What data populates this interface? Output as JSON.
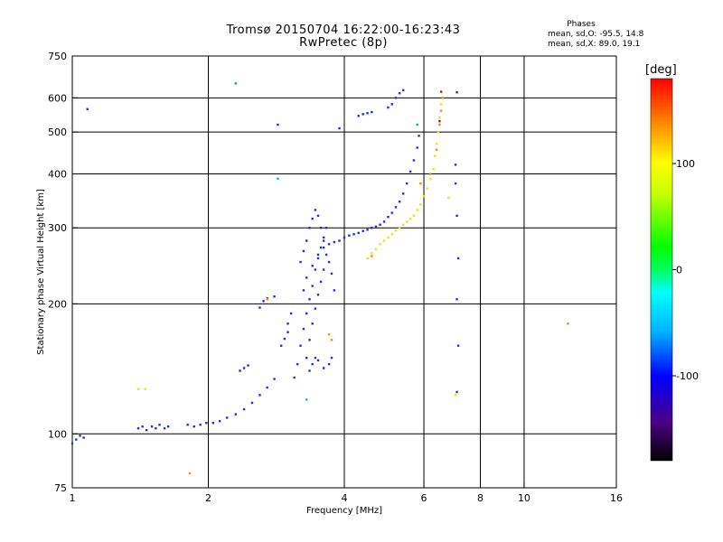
{
  "title_line1": "Tromsø 20150704 16:22:00-16:23:43",
  "title_line2": "RwPretec (8p)",
  "phases": {
    "title": "Phases",
    "o_line": "mean, sd,O: -95.5, 14.8",
    "x_line": "mean, sd,X: 89.0, 19.1"
  },
  "colorbar": {
    "unit": "[deg]",
    "ticks": [
      {
        "value": 100,
        "label": "100"
      },
      {
        "value": 0,
        "label": "0"
      },
      {
        "value": -100,
        "label": "-100"
      }
    ],
    "range": [
      -180,
      180
    ]
  },
  "chart_data": {
    "type": "scatter",
    "xlabel": "Frequency [MHz]",
    "ylabel": "Stationary phase Virtual Height [km]",
    "xscale": "log",
    "yscale": "log",
    "xlim": [
      1,
      16
    ],
    "ylim": [
      75,
      750
    ],
    "xticks": [
      {
        "value": 1,
        "label": "1"
      },
      {
        "value": 2,
        "label": "2"
      },
      {
        "value": 4,
        "label": "4"
      },
      {
        "value": 6,
        "label": "6"
      },
      {
        "value": 8,
        "label": "8"
      },
      {
        "value": 10,
        "label": "10"
      },
      {
        "value": 16,
        "label": "16"
      }
    ],
    "yticks": [
      {
        "value": 75,
        "label": "75"
      },
      {
        "value": 100,
        "label": "100"
      },
      {
        "value": 200,
        "label": "200"
      },
      {
        "value": 300,
        "label": "300"
      },
      {
        "value": 400,
        "label": "400"
      },
      {
        "value": 500,
        "label": "500"
      },
      {
        "value": 600,
        "label": "600"
      },
      {
        "value": 750,
        "label": "750"
      }
    ],
    "xgrid": [
      2,
      4,
      6,
      8,
      10
    ],
    "ygrid": [
      100,
      200,
      300,
      400,
      500,
      600
    ],
    "color_encodes": "phase [deg]",
    "series": [
      {
        "color": "#1f2ee0",
        "points": [
          [
            1.02,
            97
          ],
          [
            1.04,
            99
          ],
          [
            1.06,
            98
          ],
          [
            1.4,
            103
          ],
          [
            1.43,
            104
          ],
          [
            1.46,
            102
          ],
          [
            1.5,
            104
          ],
          [
            1.53,
            103
          ],
          [
            1.56,
            105
          ],
          [
            1.6,
            103
          ],
          [
            1.63,
            104
          ],
          [
            1.8,
            105
          ],
          [
            1.86,
            104
          ],
          [
            1.92,
            105
          ],
          [
            1.98,
            106
          ],
          [
            2.05,
            106
          ],
          [
            2.12,
            107
          ],
          [
            2.2,
            109
          ],
          [
            2.3,
            111
          ],
          [
            2.4,
            114
          ],
          [
            2.5,
            118
          ],
          [
            2.6,
            123
          ],
          [
            2.7,
            128
          ],
          [
            2.8,
            134
          ],
          [
            2.35,
            140
          ],
          [
            2.4,
            142
          ],
          [
            2.45,
            144
          ],
          [
            2.6,
            196
          ],
          [
            2.65,
            203
          ],
          [
            2.7,
            206
          ],
          [
            2.8,
            208
          ],
          [
            3.1,
            135
          ],
          [
            3.15,
            145
          ],
          [
            3.2,
            160
          ],
          [
            3.25,
            175
          ],
          [
            3.3,
            190
          ],
          [
            3.35,
            205
          ],
          [
            3.4,
            220
          ],
          [
            3.45,
            240
          ],
          [
            3.5,
            255
          ],
          [
            3.55,
            270
          ],
          [
            3.6,
            285
          ],
          [
            3.65,
            300
          ],
          [
            3.2,
            250
          ],
          [
            3.25,
            265
          ],
          [
            3.3,
            280
          ],
          [
            3.35,
            300
          ],
          [
            3.4,
            315
          ],
          [
            3.45,
            330
          ],
          [
            3.5,
            320
          ],
          [
            3.55,
            300
          ],
          [
            3.6,
            280
          ],
          [
            3.65,
            260
          ],
          [
            3.3,
            150
          ],
          [
            3.35,
            165
          ],
          [
            3.4,
            180
          ],
          [
            3.45,
            195
          ],
          [
            3.5,
            210
          ],
          [
            3.55,
            225
          ],
          [
            3.6,
            240
          ],
          [
            3.7,
            250
          ],
          [
            3.75,
            235
          ],
          [
            3.8,
            215
          ],
          [
            3.25,
            215
          ],
          [
            3.3,
            230
          ],
          [
            3.4,
            245
          ],
          [
            3.5,
            260
          ],
          [
            3.6,
            270
          ],
          [
            3.7,
            275
          ],
          [
            3.8,
            278
          ],
          [
            3.35,
            140
          ],
          [
            3.4,
            145
          ],
          [
            3.45,
            150
          ],
          [
            3.5,
            148
          ],
          [
            3.6,
            142
          ],
          [
            3.7,
            145
          ],
          [
            3.75,
            150
          ],
          [
            3.9,
            280
          ],
          [
            4.0,
            285
          ],
          [
            4.1,
            288
          ],
          [
            4.2,
            290
          ],
          [
            4.3,
            292
          ],
          [
            4.4,
            295
          ],
          [
            4.5,
            297
          ],
          [
            4.6,
            300
          ],
          [
            4.7,
            302
          ],
          [
            4.8,
            305
          ],
          [
            4.9,
            310
          ],
          [
            5.0,
            318
          ],
          [
            5.1,
            325
          ],
          [
            5.2,
            335
          ],
          [
            5.3,
            345
          ],
          [
            5.4,
            360
          ],
          [
            5.5,
            380
          ],
          [
            5.6,
            405
          ],
          [
            5.7,
            430
          ],
          [
            5.8,
            460
          ],
          [
            5.85,
            490
          ],
          [
            4.3,
            545
          ],
          [
            4.4,
            550
          ],
          [
            4.5,
            553
          ],
          [
            4.6,
            556
          ],
          [
            5.0,
            570
          ],
          [
            5.1,
            580
          ],
          [
            5.2,
            600
          ],
          [
            5.3,
            615
          ],
          [
            5.4,
            625
          ],
          [
            2.85,
            520
          ],
          [
            3.9,
            510
          ],
          [
            1.08,
            565
          ],
          [
            7.1,
            618
          ],
          [
            7.05,
            420
          ],
          [
            7.05,
            380
          ],
          [
            7.1,
            320
          ],
          [
            7.15,
            255
          ],
          [
            7.1,
            205
          ],
          [
            7.15,
            160
          ],
          [
            7.1,
            125
          ],
          [
            2.9,
            160
          ],
          [
            2.95,
            166
          ],
          [
            3.0,
            172
          ],
          [
            3.0,
            180
          ],
          [
            3.05,
            190
          ]
        ]
      },
      {
        "color": "#e6e610",
        "points": [
          [
            4.5,
            255
          ],
          [
            4.6,
            262
          ],
          [
            4.7,
            268
          ],
          [
            4.8,
            275
          ],
          [
            4.9,
            280
          ],
          [
            5.0,
            285
          ],
          [
            5.1,
            290
          ],
          [
            5.2,
            296
          ],
          [
            5.3,
            300
          ],
          [
            5.4,
            305
          ],
          [
            5.5,
            310
          ],
          [
            5.6,
            315
          ],
          [
            5.7,
            320
          ],
          [
            5.8,
            330
          ],
          [
            5.9,
            340
          ],
          [
            6.0,
            355
          ],
          [
            6.1,
            370
          ],
          [
            6.2,
            390
          ],
          [
            6.3,
            410
          ],
          [
            6.35,
            440
          ],
          [
            6.4,
            470
          ],
          [
            6.45,
            500
          ],
          [
            6.5,
            540
          ],
          [
            6.55,
            580
          ],
          [
            1.45,
            127
          ],
          [
            1.4,
            127
          ],
          [
            7.05,
            123
          ],
          [
            6.8,
            352
          ]
        ]
      },
      {
        "color": "#ff8c00",
        "points": [
          [
            4.6,
            258
          ],
          [
            5.9,
            380
          ],
          [
            6.2,
            400
          ],
          [
            6.4,
            455
          ],
          [
            6.5,
            520
          ],
          [
            6.55,
            560
          ],
          [
            6.6,
            600
          ],
          [
            3.75,
            165
          ],
          [
            3.7,
            170
          ],
          [
            1.82,
            81
          ],
          [
            12.5,
            180
          ],
          [
            2.7,
            205
          ]
        ]
      },
      {
        "color": "#00bb40",
        "points": [
          [
            2.3,
            648
          ],
          [
            5.8,
            520
          ]
        ]
      },
      {
        "color": "#e00000",
        "points": [
          [
            6.55,
            620
          ],
          [
            6.5,
            530
          ]
        ]
      },
      {
        "color": "#20a8e0",
        "points": [
          [
            1.0,
            95
          ],
          [
            2.85,
            390
          ],
          [
            3.3,
            120
          ]
        ]
      }
    ]
  }
}
